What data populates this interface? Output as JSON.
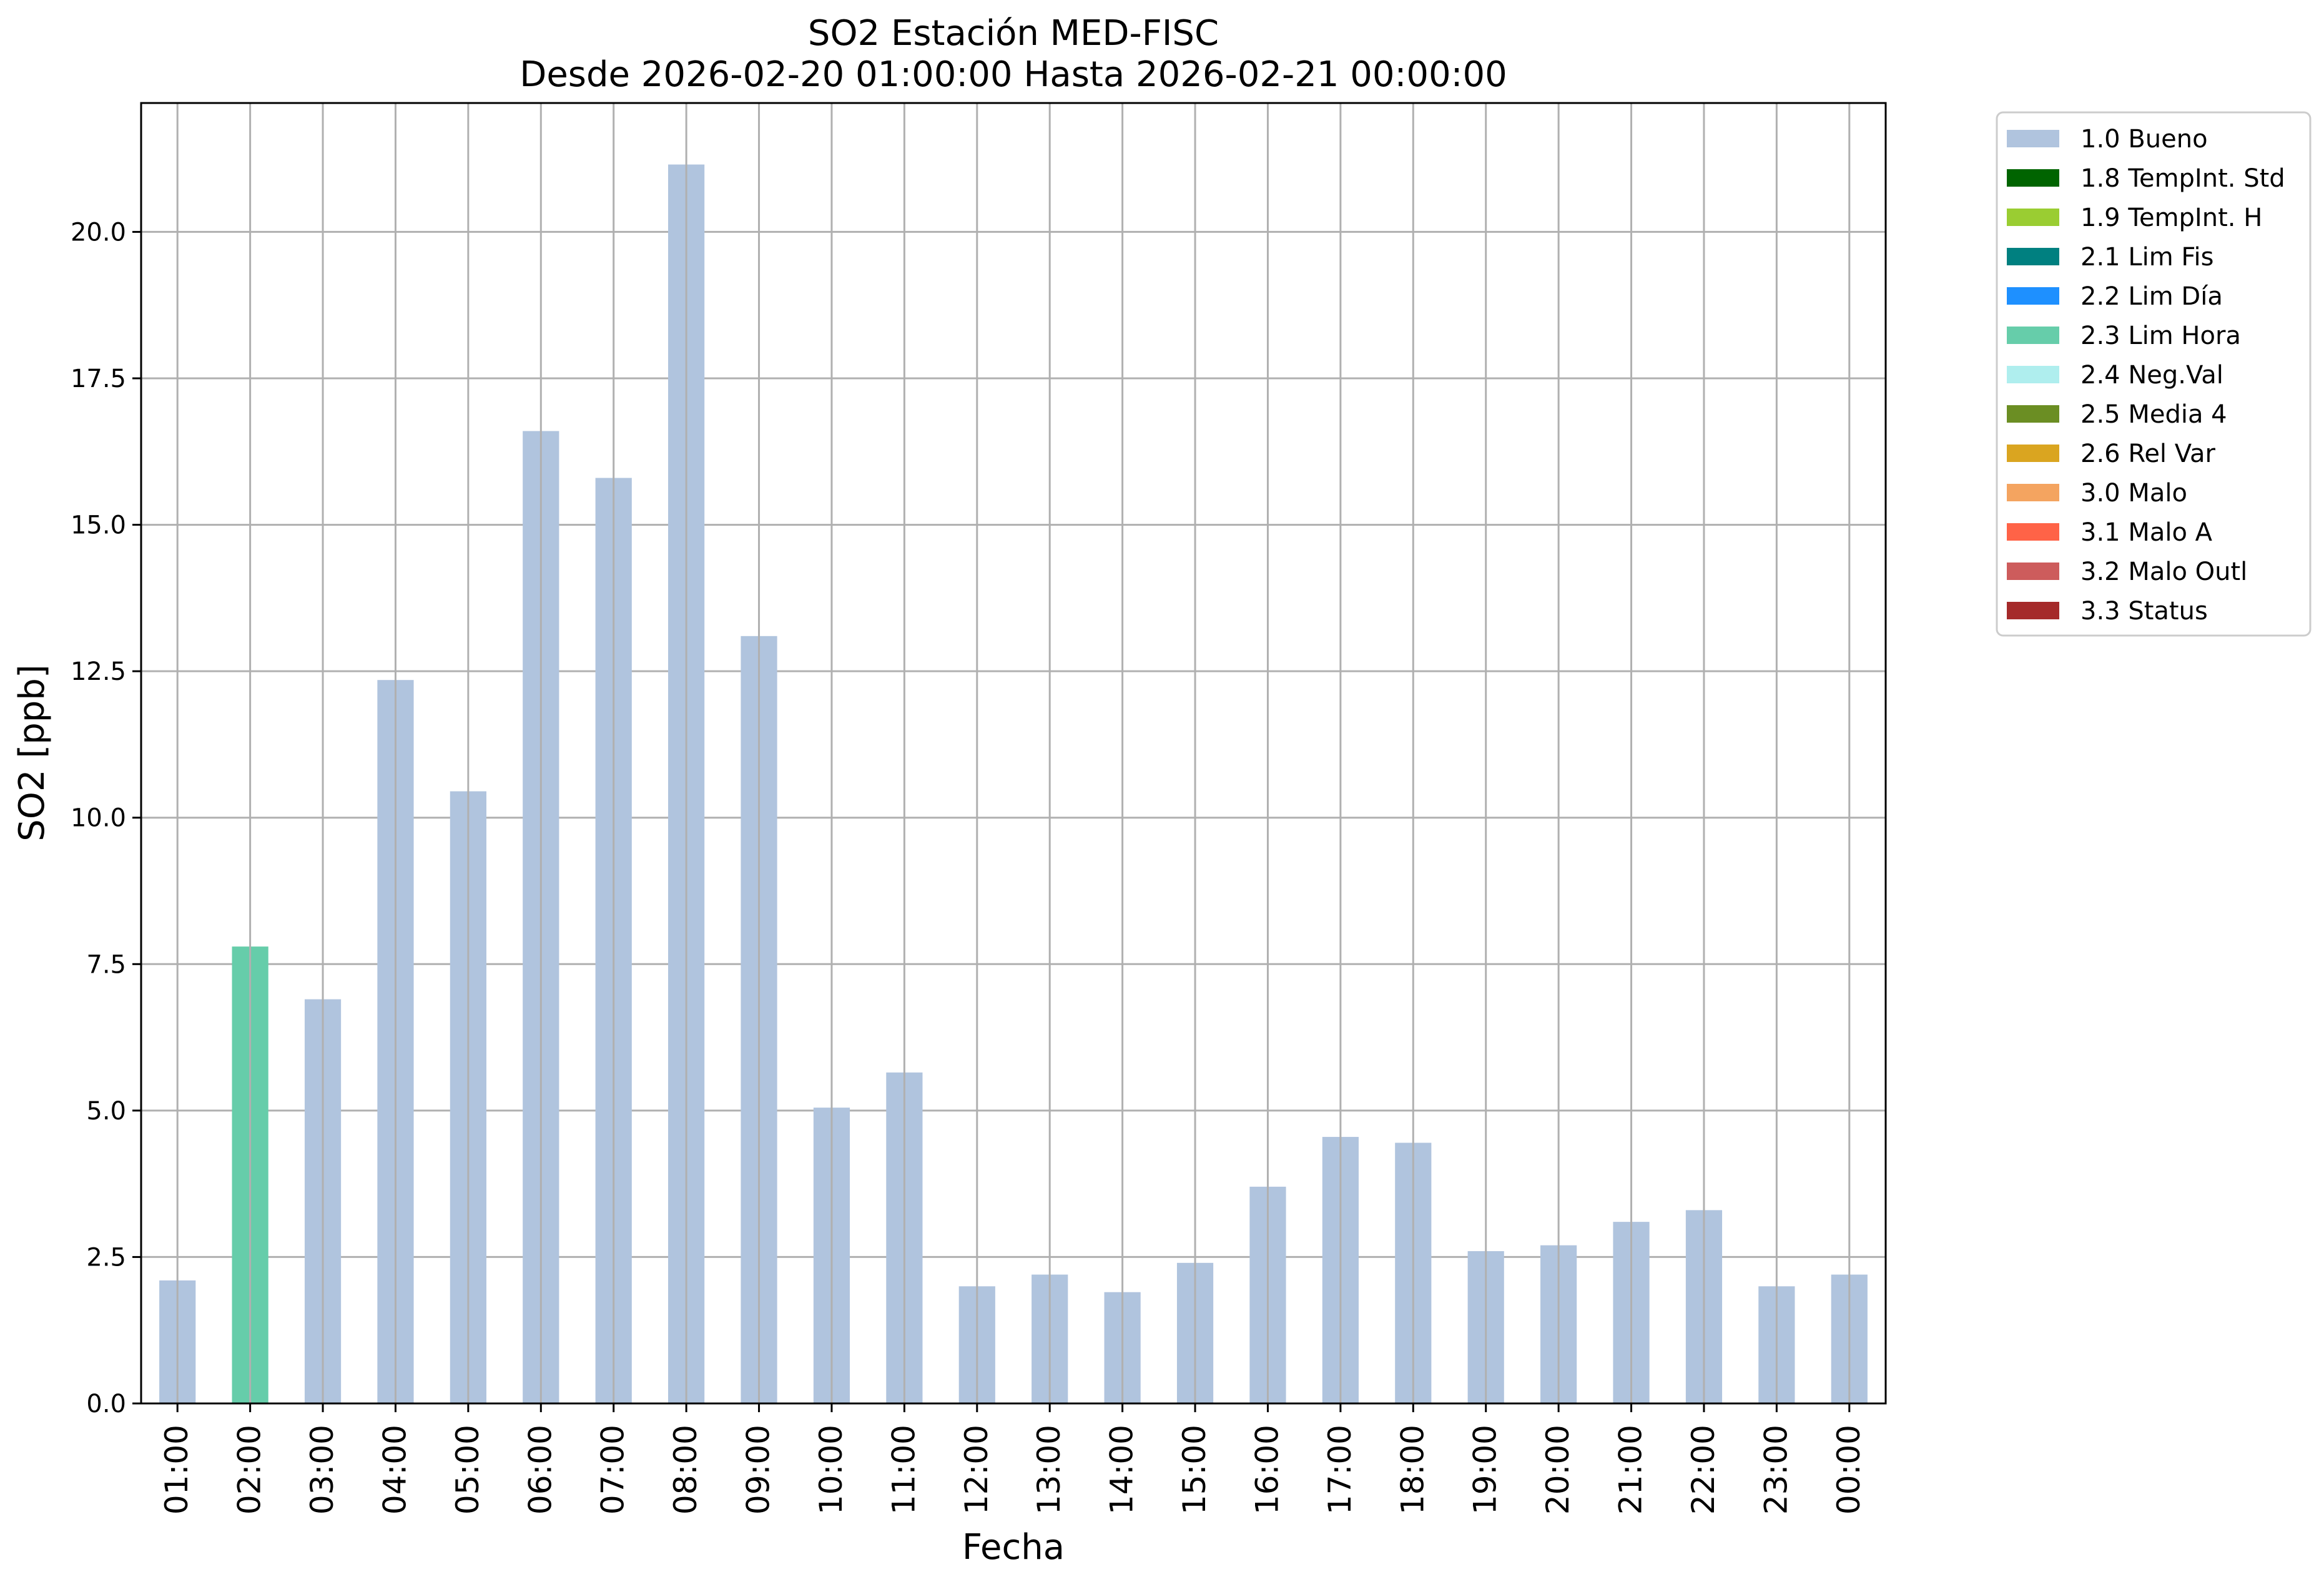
{
  "chart_data": {
    "type": "bar",
    "title": "SO2 Estación MED-FISC",
    "subtitle": "Desde 2026-02-20 01:00:00 Hasta 2026-02-21 00:00:00",
    "xlabel": "Fecha",
    "ylabel": "SO2 [ppb]",
    "ylim": [
      0,
      22.2
    ],
    "yticks": [
      "0.0",
      "2.5",
      "5.0",
      "7.5",
      "10.0",
      "12.5",
      "15.0",
      "17.5",
      "20.0"
    ],
    "grid": true,
    "legend_position": "outside-top-right",
    "categories": [
      "01:00",
      "02:00",
      "03:00",
      "04:00",
      "05:00",
      "06:00",
      "07:00",
      "08:00",
      "09:00",
      "10:00",
      "11:00",
      "12:00",
      "13:00",
      "14:00",
      "15:00",
      "16:00",
      "17:00",
      "18:00",
      "19:00",
      "20:00",
      "21:00",
      "22:00",
      "23:00",
      "00:00"
    ],
    "values": [
      2.1,
      7.8,
      6.9,
      12.35,
      10.45,
      16.6,
      15.8,
      21.15,
      13.1,
      5.05,
      5.65,
      2.0,
      2.2,
      1.9,
      2.4,
      3.7,
      4.55,
      4.45,
      2.6,
      2.7,
      3.1,
      3.3,
      2.0,
      2.2
    ],
    "flags": [
      "1.0 Bueno",
      "2.3 Lim Hora",
      "1.0 Bueno",
      "1.0 Bueno",
      "1.0 Bueno",
      "1.0 Bueno",
      "1.0 Bueno",
      "1.0 Bueno",
      "1.0 Bueno",
      "1.0 Bueno",
      "1.0 Bueno",
      "1.0 Bueno",
      "1.0 Bueno",
      "1.0 Bueno",
      "1.0 Bueno",
      "1.0 Bueno",
      "1.0 Bueno",
      "1.0 Bueno",
      "1.0 Bueno",
      "1.0 Bueno",
      "1.0 Bueno",
      "1.0 Bueno",
      "1.0 Bueno",
      "1.0 Bueno"
    ],
    "legend": [
      {
        "label": "1.0 Bueno",
        "color": "#b0c4de"
      },
      {
        "label": "1.8 TempInt. Std",
        "color": "#006400"
      },
      {
        "label": "1.9 TempInt. H",
        "color": "#9acd32"
      },
      {
        "label": "2.1 Lim Fis",
        "color": "#008080"
      },
      {
        "label": "2.2 Lim Día",
        "color": "#1e90ff"
      },
      {
        "label": "2.3 Lim Hora",
        "color": "#66cdaa"
      },
      {
        "label": "2.4 Neg.Val",
        "color": "#afeeee"
      },
      {
        "label": "2.5 Media 4",
        "color": "#6b8e23"
      },
      {
        "label": "2.6 Rel Var",
        "color": "#daa520"
      },
      {
        "label": "3.0 Malo",
        "color": "#f4a460"
      },
      {
        "label": "3.1 Malo A",
        "color": "#ff6347"
      },
      {
        "label": "3.2 Malo Outl",
        "color": "#cd5c5c"
      },
      {
        "label": "3.3 Status",
        "color": "#a52a2a"
      }
    ]
  }
}
